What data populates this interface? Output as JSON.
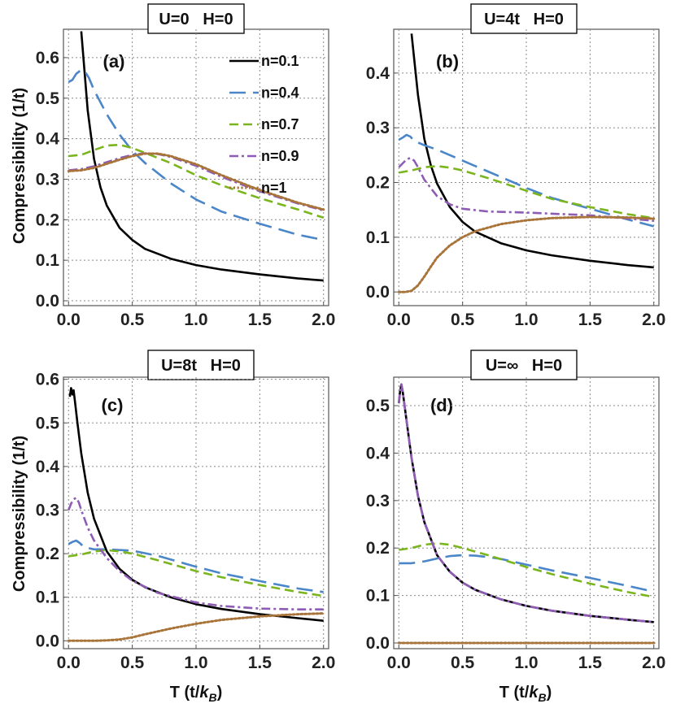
{
  "chart_data": [
    {
      "type": "line",
      "title": "U=0   H=0",
      "panel_label": "(a)",
      "xlabel": "",
      "ylabel": "Compressibility (1/t)",
      "xlim": [
        -0.04,
        2.04
      ],
      "ylim": [
        -0.012,
        0.67
      ],
      "xticks": [
        0.0,
        0.5,
        1.0,
        1.5,
        2.0
      ],
      "xtick_labels": [
        "0.0",
        "0.5",
        "1.0",
        "1.5",
        "2.0"
      ],
      "yticks": [
        0.0,
        0.1,
        0.2,
        0.3,
        0.4,
        0.5,
        0.6
      ],
      "ytick_labels": [
        "0.0",
        "0.1",
        "0.2",
        "0.3",
        "0.4",
        "0.5",
        "0.6"
      ],
      "legend": true,
      "series": [
        {
          "name": "n=0.1",
          "color": "#000000",
          "style": "solid",
          "x": [
            0.1,
            0.15,
            0.2,
            0.25,
            0.3,
            0.4,
            0.5,
            0.6,
            0.8,
            1.0,
            1.2,
            1.5,
            1.8,
            2.0
          ],
          "y": [
            0.665,
            0.47,
            0.35,
            0.28,
            0.235,
            0.18,
            0.15,
            0.128,
            0.104,
            0.088,
            0.077,
            0.065,
            0.055,
            0.05
          ]
        },
        {
          "name": "n=0.4",
          "color": "#4a86c8",
          "style": "longdash",
          "x": [
            0.0,
            0.03,
            0.06,
            0.1,
            0.13,
            0.16,
            0.2,
            0.3,
            0.4,
            0.5,
            0.6,
            0.8,
            1.0,
            1.2,
            1.5,
            1.8,
            2.0
          ],
          "y": [
            0.54,
            0.545,
            0.56,
            0.57,
            0.565,
            0.55,
            0.52,
            0.46,
            0.41,
            0.37,
            0.34,
            0.29,
            0.25,
            0.22,
            0.19,
            0.163,
            0.15
          ]
        },
        {
          "name": "n=0.7",
          "color": "#7ab51d",
          "style": "dash",
          "x": [
            0.0,
            0.1,
            0.2,
            0.3,
            0.4,
            0.5,
            0.6,
            0.8,
            1.0,
            1.2,
            1.5,
            1.8,
            2.0
          ],
          "y": [
            0.357,
            0.36,
            0.372,
            0.383,
            0.385,
            0.377,
            0.365,
            0.34,
            0.31,
            0.285,
            0.253,
            0.225,
            0.205
          ]
        },
        {
          "name": "n=0.9",
          "color": "#8e5bb5",
          "style": "dashdot",
          "x": [
            0.0,
            0.1,
            0.2,
            0.3,
            0.4,
            0.5,
            0.6,
            0.7,
            0.8,
            1.0,
            1.2,
            1.5,
            1.8,
            2.0
          ],
          "y": [
            0.322,
            0.325,
            0.332,
            0.342,
            0.352,
            0.36,
            0.364,
            0.362,
            0.355,
            0.333,
            0.306,
            0.27,
            0.24,
            0.223
          ]
        },
        {
          "name": "n=1",
          "color": "#a8743a",
          "style": "dotted",
          "x": [
            0.0,
            0.1,
            0.2,
            0.3,
            0.4,
            0.5,
            0.6,
            0.7,
            0.8,
            1.0,
            1.2,
            1.5,
            1.8,
            2.0
          ],
          "y": [
            0.32,
            0.322,
            0.328,
            0.338,
            0.348,
            0.357,
            0.363,
            0.363,
            0.357,
            0.337,
            0.31,
            0.273,
            0.242,
            0.225
          ]
        }
      ]
    },
    {
      "type": "line",
      "title": "U=4t   H=0",
      "panel_label": "(b)",
      "xlabel": "",
      "ylabel": "",
      "xlim": [
        -0.04,
        2.04
      ],
      "ylim": [
        -0.025,
        0.48
      ],
      "xticks": [
        0.0,
        0.5,
        1.0,
        1.5,
        2.0
      ],
      "xtick_labels": [
        "0.0",
        "0.5",
        "1.0",
        "1.5",
        "2.0"
      ],
      "yticks": [
        0.0,
        0.1,
        0.2,
        0.3,
        0.4
      ],
      "ytick_labels": [
        "0.0",
        "0.1",
        "0.2",
        "0.3",
        "0.4"
      ],
      "legend": false,
      "series": [
        {
          "name": "n=0.1",
          "color": "#000000",
          "style": "solid",
          "x": [
            0.1,
            0.15,
            0.2,
            0.25,
            0.3,
            0.4,
            0.5,
            0.6,
            0.8,
            1.0,
            1.2,
            1.5,
            1.8,
            2.0
          ],
          "y": [
            0.472,
            0.36,
            0.28,
            0.232,
            0.198,
            0.155,
            0.128,
            0.11,
            0.089,
            0.076,
            0.067,
            0.057,
            0.049,
            0.045
          ]
        },
        {
          "name": "n=0.4",
          "color": "#4a86c8",
          "style": "longdash",
          "x": [
            0.0,
            0.03,
            0.06,
            0.09,
            0.12,
            0.2,
            0.3,
            0.5,
            0.7,
            1.0,
            1.2,
            1.5,
            1.8,
            2.0
          ],
          "y": [
            0.278,
            0.282,
            0.287,
            0.284,
            0.276,
            0.268,
            0.26,
            0.24,
            0.22,
            0.19,
            0.172,
            0.152,
            0.132,
            0.12
          ]
        },
        {
          "name": "n=0.7",
          "color": "#7ab51d",
          "style": "dash",
          "x": [
            0.0,
            0.1,
            0.2,
            0.3,
            0.4,
            0.5,
            0.7,
            1.0,
            1.2,
            1.5,
            1.8,
            2.0
          ],
          "y": [
            0.218,
            0.222,
            0.228,
            0.23,
            0.227,
            0.222,
            0.208,
            0.185,
            0.17,
            0.155,
            0.142,
            0.135
          ]
        },
        {
          "name": "n=0.9",
          "color": "#8e5bb5",
          "style": "dashdot",
          "x": [
            0.0,
            0.03,
            0.06,
            0.09,
            0.12,
            0.15,
            0.2,
            0.3,
            0.4,
            0.5,
            0.7,
            1.0,
            1.5,
            2.0
          ],
          "y": [
            0.228,
            0.235,
            0.242,
            0.245,
            0.24,
            0.228,
            0.205,
            0.175,
            0.16,
            0.152,
            0.147,
            0.145,
            0.14,
            0.13
          ]
        },
        {
          "name": "n=1",
          "color": "#a8743a",
          "style": "dotted",
          "x": [
            0.0,
            0.05,
            0.1,
            0.15,
            0.2,
            0.25,
            0.3,
            0.4,
            0.5,
            0.6,
            0.8,
            1.0,
            1.2,
            1.5,
            1.8,
            2.0
          ],
          "y": [
            0.0,
            0.0,
            0.002,
            0.012,
            0.028,
            0.046,
            0.063,
            0.085,
            0.1,
            0.111,
            0.124,
            0.131,
            0.135,
            0.137,
            0.136,
            0.134
          ]
        }
      ]
    },
    {
      "type": "line",
      "title": "U=8t   H=0",
      "panel_label": "(c)",
      "xlabel": "T (t/k_B)",
      "ylabel": "Compressibility (1/t)",
      "xlim": [
        -0.04,
        2.04
      ],
      "ylim": [
        -0.018,
        0.605
      ],
      "xticks": [
        0.0,
        0.5,
        1.0,
        1.5,
        2.0
      ],
      "xtick_labels": [
        "0.0",
        "0.5",
        "1.0",
        "1.5",
        "2.0"
      ],
      "yticks": [
        0.0,
        0.1,
        0.2,
        0.3,
        0.4,
        0.5,
        0.6
      ],
      "ytick_labels": [
        "0.0",
        "0.1",
        "0.2",
        "0.3",
        "0.4",
        "0.5",
        "0.6"
      ],
      "legend": false,
      "series": [
        {
          "name": "n=0.1",
          "color": "#000000",
          "style": "solid",
          "x": [
            0.01,
            0.02,
            0.03,
            0.04,
            0.05,
            0.07,
            0.1,
            0.15,
            0.2,
            0.3,
            0.4,
            0.5,
            0.6,
            0.8,
            1.0,
            1.2,
            1.5,
            1.8,
            2.0
          ],
          "y": [
            0.56,
            0.58,
            0.565,
            0.575,
            0.55,
            0.5,
            0.43,
            0.34,
            0.28,
            0.205,
            0.165,
            0.14,
            0.123,
            0.1,
            0.084,
            0.073,
            0.061,
            0.052,
            0.046
          ]
        },
        {
          "name": "n=0.4",
          "color": "#4a86c8",
          "style": "longdash",
          "x": [
            0.0,
            0.03,
            0.06,
            0.09,
            0.12,
            0.2,
            0.3,
            0.5,
            0.7,
            1.0,
            1.2,
            1.5,
            1.8,
            2.0
          ],
          "y": [
            0.222,
            0.227,
            0.23,
            0.224,
            0.215,
            0.21,
            0.21,
            0.207,
            0.195,
            0.17,
            0.155,
            0.137,
            0.12,
            0.112
          ]
        },
        {
          "name": "n=0.7",
          "color": "#7ab51d",
          "style": "dash",
          "x": [
            0.0,
            0.1,
            0.2,
            0.3,
            0.4,
            0.5,
            0.7,
            1.0,
            1.2,
            1.5,
            1.8,
            2.0
          ],
          "y": [
            0.194,
            0.198,
            0.205,
            0.208,
            0.205,
            0.2,
            0.185,
            0.16,
            0.146,
            0.128,
            0.112,
            0.103
          ]
        },
        {
          "name": "n=0.9",
          "color": "#8e5bb5",
          "style": "dashdot",
          "x": [
            0.0,
            0.02,
            0.04,
            0.06,
            0.08,
            0.1,
            0.15,
            0.2,
            0.3,
            0.4,
            0.5,
            0.7,
            1.0,
            1.2,
            1.5,
            1.8,
            2.0
          ],
          "y": [
            0.3,
            0.315,
            0.325,
            0.328,
            0.318,
            0.3,
            0.26,
            0.23,
            0.19,
            0.16,
            0.138,
            0.11,
            0.088,
            0.08,
            0.074,
            0.072,
            0.072
          ]
        },
        {
          "name": "n=1",
          "color": "#a8743a",
          "style": "dotted",
          "x": [
            0.0,
            0.1,
            0.2,
            0.3,
            0.4,
            0.5,
            0.6,
            0.8,
            1.0,
            1.2,
            1.5,
            1.8,
            2.0
          ],
          "y": [
            0.0,
            0.0,
            0.0,
            0.001,
            0.003,
            0.008,
            0.015,
            0.028,
            0.039,
            0.048,
            0.056,
            0.061,
            0.063
          ]
        }
      ]
    },
    {
      "type": "line",
      "title": "U=∞   H=0",
      "panel_label": "(d)",
      "xlabel": "T (t/k_B)",
      "ylabel": "",
      "xlim": [
        -0.04,
        2.04
      ],
      "ylim": [
        -0.012,
        0.56
      ],
      "xticks": [
        0.0,
        0.5,
        1.0,
        1.5,
        2.0
      ],
      "xtick_labels": [
        "0.0",
        "0.5",
        "1.0",
        "1.5",
        "2.0"
      ],
      "yticks": [
        0.0,
        0.1,
        0.2,
        0.3,
        0.4,
        0.5
      ],
      "ytick_labels": [
        "0.0",
        "0.1",
        "0.2",
        "0.3",
        "0.4",
        "0.5"
      ],
      "legend": false,
      "series": [
        {
          "name": "n=0.1",
          "color": "#000000",
          "style": "solid",
          "x": [
            0.0,
            0.01,
            0.02,
            0.03,
            0.05,
            0.07,
            0.1,
            0.15,
            0.2,
            0.3,
            0.4,
            0.5,
            0.6,
            0.8,
            1.0,
            1.2,
            1.5,
            1.8,
            2.0
          ],
          "y": [
            0.505,
            0.53,
            0.545,
            0.53,
            0.49,
            0.45,
            0.39,
            0.31,
            0.255,
            0.185,
            0.15,
            0.127,
            0.112,
            0.092,
            0.078,
            0.068,
            0.057,
            0.049,
            0.044
          ]
        },
        {
          "name": "n=0.4",
          "color": "#4a86c8",
          "style": "longdash",
          "x": [
            0.0,
            0.1,
            0.2,
            0.3,
            0.4,
            0.5,
            0.6,
            0.7,
            0.8,
            1.0,
            1.2,
            1.5,
            1.8,
            2.0
          ],
          "y": [
            0.168,
            0.168,
            0.172,
            0.178,
            0.183,
            0.185,
            0.184,
            0.181,
            0.177,
            0.165,
            0.153,
            0.137,
            0.12,
            0.108
          ]
        },
        {
          "name": "n=0.7",
          "color": "#7ab51d",
          "style": "dash",
          "x": [
            0.0,
            0.1,
            0.2,
            0.3,
            0.4,
            0.5,
            0.7,
            1.0,
            1.2,
            1.5,
            1.8,
            2.0
          ],
          "y": [
            0.196,
            0.2,
            0.207,
            0.21,
            0.207,
            0.2,
            0.185,
            0.16,
            0.145,
            0.125,
            0.107,
            0.097
          ]
        },
        {
          "name": "n=0.9",
          "color": "#8e5bb5",
          "style": "dashdot",
          "x": [
            0.0,
            0.01,
            0.02,
            0.03,
            0.05,
            0.07,
            0.1,
            0.15,
            0.2,
            0.3,
            0.4,
            0.5,
            0.6,
            0.8,
            1.0,
            1.2,
            1.5,
            1.8,
            2.0
          ],
          "y": [
            0.505,
            0.53,
            0.545,
            0.53,
            0.49,
            0.45,
            0.39,
            0.31,
            0.255,
            0.185,
            0.15,
            0.127,
            0.112,
            0.092,
            0.078,
            0.068,
            0.057,
            0.049,
            0.044
          ]
        },
        {
          "name": "n=1",
          "color": "#a8743a",
          "style": "dotted",
          "x": [
            0.0,
            0.5,
            1.0,
            1.5,
            2.0
          ],
          "y": [
            0.0,
            0.0,
            0.0,
            0.0,
            0.0
          ]
        }
      ]
    }
  ]
}
